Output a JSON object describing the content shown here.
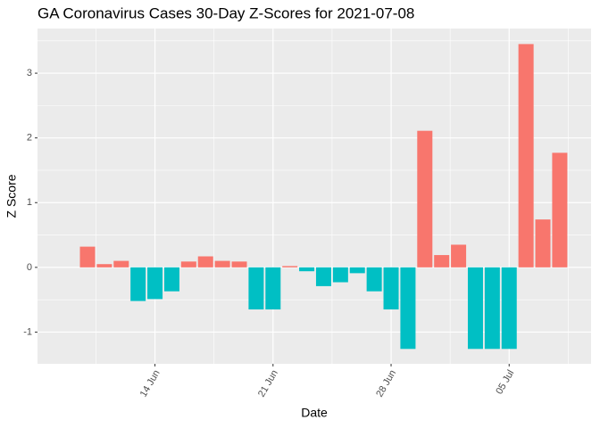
{
  "chart_data": {
    "type": "bar",
    "title": "GA Coronavirus Cases 30-Day Z-Scores for 2021-07-08",
    "xlabel": "Date",
    "ylabel": "Z Score",
    "categories": [
      null,
      null,
      null,
      null,
      "14 Jun",
      null,
      null,
      null,
      null,
      null,
      null,
      "21 Jun",
      null,
      null,
      null,
      null,
      null,
      null,
      "28 Jun",
      null,
      null,
      null,
      null,
      null,
      null,
      "05 Jul",
      null,
      null,
      null
    ],
    "values": [
      0.32,
      0.05,
      0.1,
      -0.52,
      -0.49,
      -0.37,
      0.09,
      0.17,
      0.1,
      0.09,
      -0.65,
      -0.65,
      0.02,
      -0.06,
      -0.29,
      -0.23,
      -0.09,
      -0.37,
      -0.65,
      -1.26,
      2.11,
      0.19,
      0.35,
      -1.26,
      -1.26,
      -1.26,
      3.45,
      0.74,
      1.77
    ],
    "color_positive": "#F8766D",
    "color_negative": "#00BFC4",
    "ylim": [
      -1.49,
      3.69
    ],
    "yticks": [
      -1,
      0,
      1,
      2,
      3
    ],
    "grid": true
  }
}
